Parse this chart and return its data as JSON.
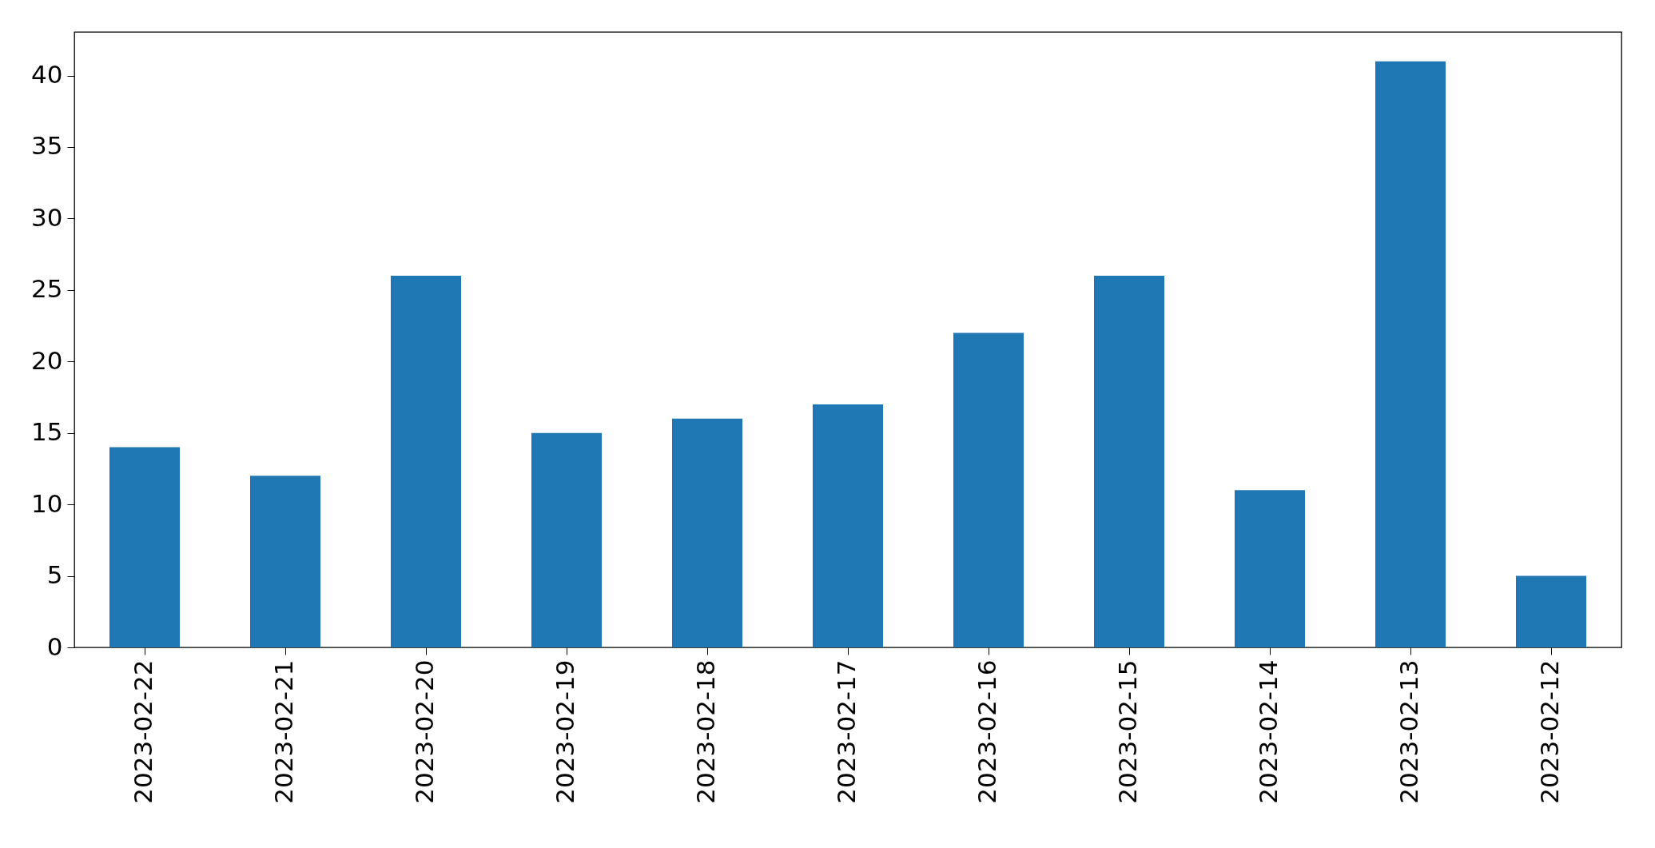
{
  "chart_data": {
    "type": "bar",
    "categories": [
      "2023-02-22",
      "2023-02-21",
      "2023-02-20",
      "2023-02-19",
      "2023-02-18",
      "2023-02-17",
      "2023-02-16",
      "2023-02-15",
      "2023-02-14",
      "2023-02-13",
      "2023-02-12"
    ],
    "values": [
      14,
      12,
      26,
      15,
      16,
      17,
      22,
      26,
      11,
      41,
      5
    ],
    "color": "#1f77b4",
    "ylim": [
      0,
      43.05
    ],
    "yticks": [
      0,
      5,
      10,
      15,
      20,
      25,
      30,
      35,
      40
    ],
    "grid": false
  }
}
